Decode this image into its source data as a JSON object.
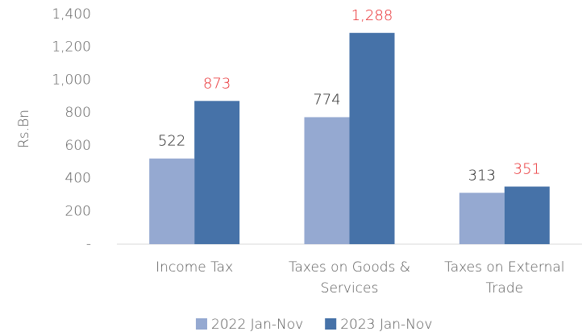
{
  "chart_data": {
    "type": "bar",
    "y_label": "Rs.Bn",
    "categories": [
      [
        "Income Tax"
      ],
      [
        "Taxes on Goods &",
        "Services"
      ],
      [
        "Taxes on External",
        "Trade"
      ]
    ],
    "series": [
      {
        "name": "2022 Jan-Nov",
        "color": "#95a9d1",
        "label_color": "#1a1a1a",
        "values": [
          522,
          774,
          313
        ]
      },
      {
        "name": "2023 Jan-Nov",
        "color": "#4672a8",
        "label_color": "#e8282b",
        "values": [
          873,
          1288,
          351
        ],
        "value_labels": [
          "873",
          "1,288",
          "351"
        ]
      }
    ],
    "ylim": [
      0,
      1400
    ],
    "yticks": [
      {
        "value": 0,
        "label": "-"
      },
      200,
      400,
      600,
      800,
      {
        "value": 1000,
        "label": "1,000"
      },
      {
        "value": 1200,
        "label": "1,200"
      },
      {
        "value": 1400,
        "label": "1,400"
      }
    ],
    "legend": "bottom"
  }
}
